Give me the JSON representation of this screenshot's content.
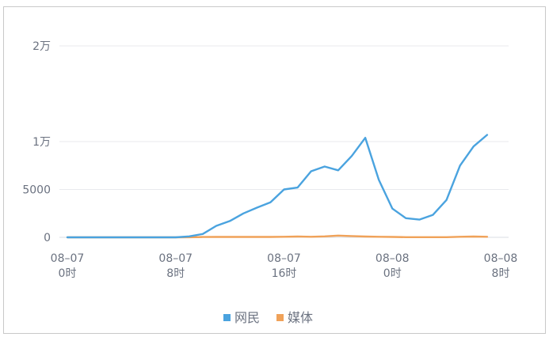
{
  "chart_data": {
    "type": "line",
    "y_ticks": [
      {
        "value": 0,
        "label": "0"
      },
      {
        "value": 5000,
        "label": "5000"
      },
      {
        "value": 10000,
        "label": "1万"
      },
      {
        "value": 20000,
        "label": "2万"
      }
    ],
    "ylim": [
      0,
      20000
    ],
    "x_ticks": [
      {
        "hour": 0,
        "date": "08–07",
        "time": "0时"
      },
      {
        "hour": 8,
        "date": "08–07",
        "time": "8时"
      },
      {
        "hour": 16,
        "date": "08–07",
        "time": "16时"
      },
      {
        "hour": 24,
        "date": "08–08",
        "time": "0时"
      },
      {
        "hour": 32,
        "date": "08–08",
        "time": "8时"
      }
    ],
    "xlim": [
      0,
      32
    ],
    "grid": true,
    "legend_position": "bottom-center",
    "series": [
      {
        "name": "网民",
        "color": "#4aa3df",
        "points": [
          [
            0,
            0
          ],
          [
            1,
            0
          ],
          [
            2,
            0
          ],
          [
            3,
            0
          ],
          [
            4,
            0
          ],
          [
            5,
            0
          ],
          [
            6,
            0
          ],
          [
            7,
            0
          ],
          [
            8,
            0
          ],
          [
            9,
            100
          ],
          [
            10,
            350
          ],
          [
            11,
            1200
          ],
          [
            12,
            1700
          ],
          [
            13,
            2500
          ],
          [
            14,
            3100
          ],
          [
            15,
            3650
          ],
          [
            16,
            5000
          ],
          [
            17,
            5200
          ],
          [
            18,
            6900
          ],
          [
            19,
            7400
          ],
          [
            20,
            7000
          ],
          [
            21,
            8500
          ],
          [
            22,
            10400
          ],
          [
            23,
            6000
          ],
          [
            24,
            3000
          ],
          [
            25,
            2000
          ],
          [
            26,
            1850
          ],
          [
            27,
            2350
          ],
          [
            28,
            3900
          ],
          [
            29,
            7500
          ],
          [
            30,
            9500
          ],
          [
            31,
            10700
          ]
        ]
      },
      {
        "name": "媒体",
        "color": "#f0a259",
        "points": [
          [
            0,
            0
          ],
          [
            1,
            0
          ],
          [
            2,
            0
          ],
          [
            3,
            0
          ],
          [
            4,
            0
          ],
          [
            5,
            0
          ],
          [
            6,
            0
          ],
          [
            7,
            0
          ],
          [
            8,
            0
          ],
          [
            9,
            10
          ],
          [
            10,
            30
          ],
          [
            11,
            40
          ],
          [
            12,
            40
          ],
          [
            13,
            40
          ],
          [
            14,
            40
          ],
          [
            15,
            40
          ],
          [
            16,
            60
          ],
          [
            17,
            80
          ],
          [
            18,
            60
          ],
          [
            19,
            100
          ],
          [
            20,
            180
          ],
          [
            21,
            130
          ],
          [
            22,
            80
          ],
          [
            23,
            60
          ],
          [
            24,
            40
          ],
          [
            25,
            20
          ],
          [
            26,
            20
          ],
          [
            27,
            20
          ],
          [
            28,
            20
          ],
          [
            29,
            60
          ],
          [
            30,
            80
          ],
          [
            31,
            60
          ]
        ]
      }
    ]
  }
}
